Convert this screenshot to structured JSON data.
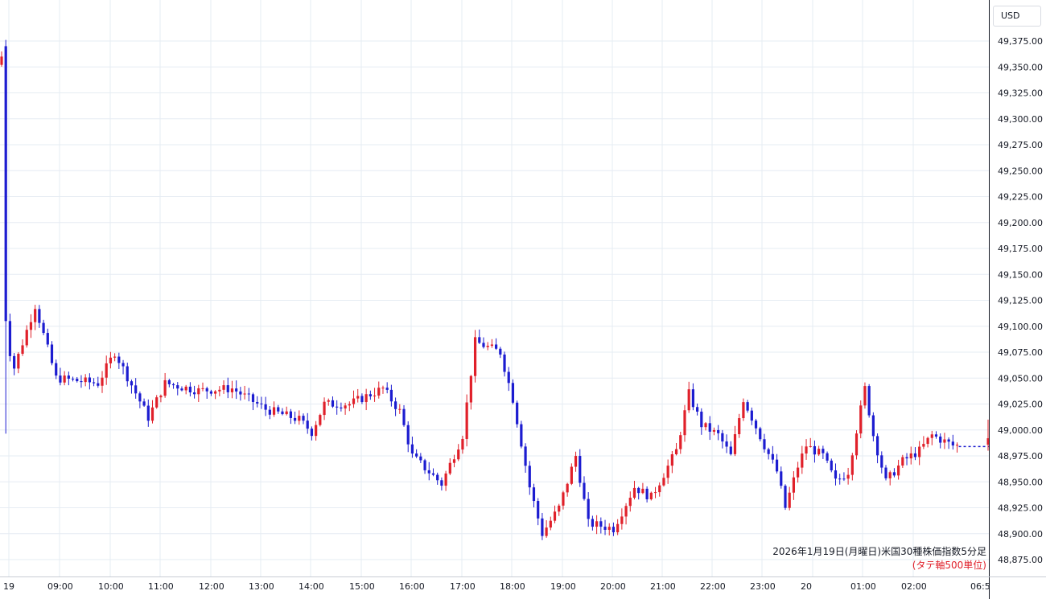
{
  "currency": "USD",
  "caption": {
    "title": "2026年1月19日(月曜日)米国30種株価指数5分足",
    "note": "(タテ軸500単位)"
  },
  "colors": {
    "up": "#e0202a",
    "down": "#1c1cd0",
    "grid": "#e6ecf3",
    "axis": "#131722"
  },
  "chart_data": {
    "type": "candlestick",
    "interval_minutes": 5,
    "x_tick_labels": [
      "19",
      "09:00",
      "10:00",
      "11:00",
      "12:00",
      "13:00",
      "14:00",
      "15:00",
      "16:00",
      "17:00",
      "18:00",
      "19:00",
      "20:00",
      "21:00",
      "22:00",
      "23:00",
      "20",
      "01:00",
      "02:00",
      "06:5"
    ],
    "y_tick_labels": [
      "49,375.00",
      "49,350.00",
      "49,325.00",
      "49,300.00",
      "49,275.00",
      "49,250.00",
      "49,225.00",
      "49,200.00",
      "49,175.00",
      "49,150.00",
      "49,125.00",
      "49,100.00",
      "49,075.00",
      "49,050.00",
      "49,025.00",
      "49,000.00",
      "48,975.00",
      "48,950.00",
      "48,925.00",
      "48,900.00",
      "48,875.00"
    ],
    "ylim": [
      48860,
      49390
    ],
    "grid": true,
    "legend": "none",
    "key_points": [
      {
        "time": "08:00",
        "price": 49360
      },
      {
        "time": "08:05",
        "price": 49105
      },
      {
        "time": "08:20",
        "price": 49060
      },
      {
        "time": "08:45",
        "price": 49120
      },
      {
        "time": "09:10",
        "price": 49050
      },
      {
        "time": "10:00",
        "price": 49045
      },
      {
        "time": "10:20",
        "price": 49075
      },
      {
        "time": "11:00",
        "price": 49012
      },
      {
        "time": "11:20",
        "price": 49045
      },
      {
        "time": "12:00",
        "price": 49038
      },
      {
        "time": "12:40",
        "price": 49040
      },
      {
        "time": "13:20",
        "price": 49020
      },
      {
        "time": "14:00",
        "price": 49010
      },
      {
        "time": "14:15",
        "price": 48998
      },
      {
        "time": "14:30",
        "price": 49025
      },
      {
        "time": "15:00",
        "price": 49025
      },
      {
        "time": "15:40",
        "price": 49040
      },
      {
        "time": "16:00",
        "price": 49018
      },
      {
        "time": "16:15",
        "price": 48975
      },
      {
        "time": "16:50",
        "price": 48948
      },
      {
        "time": "17:15",
        "price": 48995
      },
      {
        "time": "17:30",
        "price": 49085
      },
      {
        "time": "18:00",
        "price": 49075
      },
      {
        "time": "18:15",
        "price": 49030
      },
      {
        "time": "18:35",
        "price": 48945
      },
      {
        "time": "18:50",
        "price": 48900
      },
      {
        "time": "19:10",
        "price": 48925
      },
      {
        "time": "19:30",
        "price": 48975
      },
      {
        "time": "19:45",
        "price": 48910
      },
      {
        "time": "20:15",
        "price": 48905
      },
      {
        "time": "20:40",
        "price": 48945
      },
      {
        "time": "21:00",
        "price": 48935
      },
      {
        "time": "21:30",
        "price": 48980
      },
      {
        "time": "21:45",
        "price": 49035
      },
      {
        "time": "22:00",
        "price": 49005
      },
      {
        "time": "22:20",
        "price": 48995
      },
      {
        "time": "22:35",
        "price": 48975
      },
      {
        "time": "22:50",
        "price": 49030
      },
      {
        "time": "23:15",
        "price": 48985
      },
      {
        "time": "23:30",
        "price": 48960
      },
      {
        "time": "23:40",
        "price": 48925
      },
      {
        "time": "23:55",
        "price": 48965
      },
      {
        "time": "00:05",
        "price": 48985
      },
      {
        "time": "00:25",
        "price": 48975
      },
      {
        "time": "00:40",
        "price": 48950
      },
      {
        "time": "00:55",
        "price": 48960
      },
      {
        "time": "01:05",
        "price": 49000
      },
      {
        "time": "01:15",
        "price": 49040
      },
      {
        "time": "01:25",
        "price": 48995
      },
      {
        "time": "01:40",
        "price": 48950
      },
      {
        "time": "02:00",
        "price": 48970
      },
      {
        "time": "02:20",
        "price": 48980
      },
      {
        "time": "02:35",
        "price": 48995
      },
      {
        "time": "03:00",
        "price": 48985
      },
      {
        "time": "06:55",
        "price": 48990
      }
    ]
  }
}
